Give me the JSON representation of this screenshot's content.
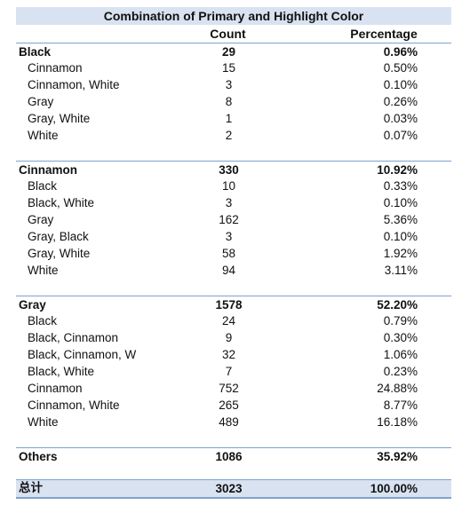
{
  "table": {
    "title": "Combination of Primary and Highlight Color",
    "headers": {
      "count": "Count",
      "percentage": "Percentage"
    },
    "groups": [
      {
        "label": "Black",
        "count": "29",
        "percentage": "0.96%",
        "items": [
          {
            "label": "Cinnamon",
            "count": "15",
            "percentage": "0.50%"
          },
          {
            "label": "Cinnamon, White",
            "count": "3",
            "percentage": "0.10%"
          },
          {
            "label": "Gray",
            "count": "8",
            "percentage": "0.26%"
          },
          {
            "label": "Gray, White",
            "count": "1",
            "percentage": "0.03%"
          },
          {
            "label": "White",
            "count": "2",
            "percentage": "0.07%"
          }
        ]
      },
      {
        "label": "Cinnamon",
        "count": "330",
        "percentage": "10.92%",
        "items": [
          {
            "label": "Black",
            "count": "10",
            "percentage": "0.33%"
          },
          {
            "label": "Black, White",
            "count": "3",
            "percentage": "0.10%"
          },
          {
            "label": "Gray",
            "count": "162",
            "percentage": "5.36%"
          },
          {
            "label": "Gray, Black",
            "count": "3",
            "percentage": "0.10%"
          },
          {
            "label": "Gray, White",
            "count": "58",
            "percentage": "1.92%"
          },
          {
            "label": "White",
            "count": "94",
            "percentage": "3.11%"
          }
        ]
      },
      {
        "label": "Gray",
        "count": "1578",
        "percentage": "52.20%",
        "items": [
          {
            "label": "Black",
            "count": "24",
            "percentage": "0.79%"
          },
          {
            "label": "Black, Cinnamon",
            "count": "9",
            "percentage": "0.30%"
          },
          {
            "label": "Black, Cinnamon, W",
            "count": "32",
            "percentage": "1.06%"
          },
          {
            "label": "Black, White",
            "count": "7",
            "percentage": "0.23%"
          },
          {
            "label": "Cinnamon",
            "count": "752",
            "percentage": "24.88%"
          },
          {
            "label": "Cinnamon, White",
            "count": "265",
            "percentage": "8.77%"
          },
          {
            "label": "White",
            "count": "489",
            "percentage": "16.18%"
          }
        ]
      },
      {
        "label": "Others",
        "count": "1086",
        "percentage": "35.92%",
        "items": []
      }
    ],
    "total": {
      "label": "总计",
      "count": "3023",
      "percentage": "100.00%"
    }
  },
  "colors": {
    "header_fill": "#d9e2f0",
    "rule": "#7ea2cf"
  }
}
